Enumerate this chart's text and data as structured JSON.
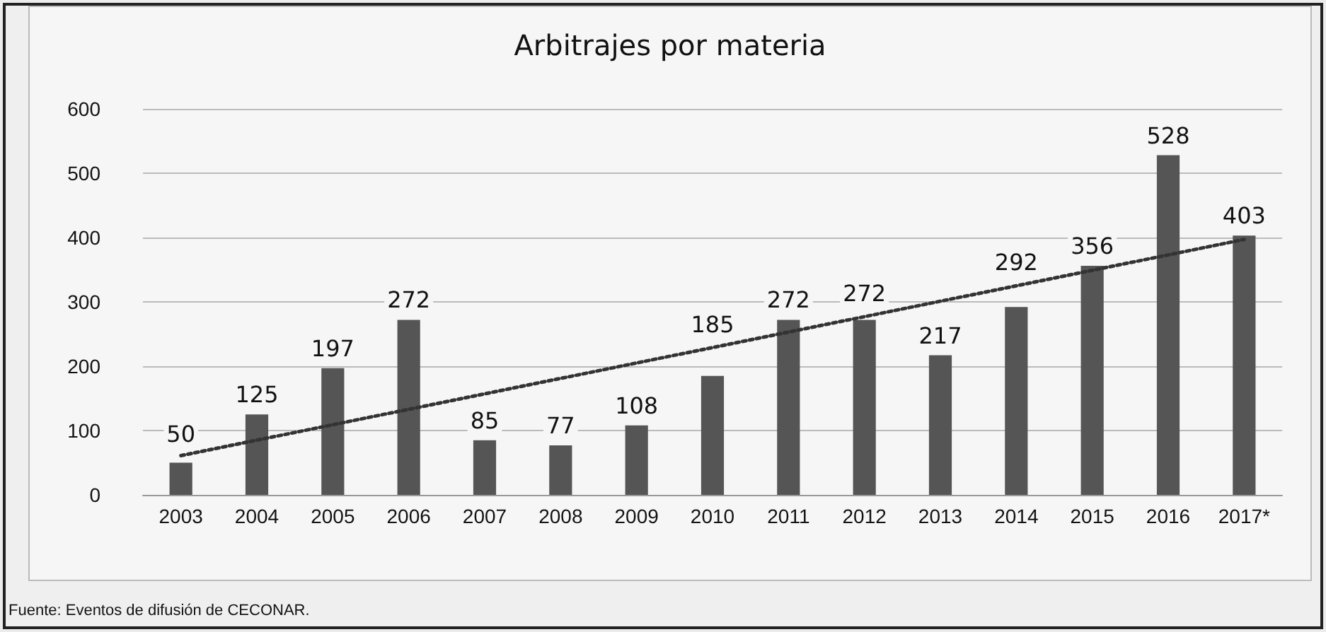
{
  "chart_data": {
    "type": "bar",
    "title": "Arbitrajes por materia",
    "categories": [
      "2003",
      "2004",
      "2005",
      "2006",
      "2007",
      "2008",
      "2009",
      "2010",
      "2011",
      "2012",
      "2013",
      "2014",
      "2015",
      "2016",
      "2017*"
    ],
    "series": [
      {
        "color": "#555555",
        "values": [
          50,
          125,
          197,
          272,
          85,
          77,
          108,
          185,
          272,
          272,
          217,
          292,
          356,
          528,
          403
        ],
        "value_labels": [
          "50",
          "125",
          "197",
          "272",
          "85",
          "77",
          "108",
          "185",
          "272",
          "272",
          "217",
          "292",
          "356",
          "528",
          "403"
        ]
      },
      {
        "type": "line",
        "color": "#333333",
        "values": [
          61,
          null,
          null,
          null,
          null,
          null,
          null,
          null,
          null,
          null,
          null,
          null,
          null,
          null,
          397
        ],
        "line_style": "dotted",
        "marker": "none"
      }
    ],
    "ylim": [
      0,
      600
    ],
    "yticks": [
      0,
      100,
      200,
      300,
      400,
      500,
      600
    ],
    "grid": "y",
    "annotations": [
      "Fuente: Eventos de difusión de CECONAR."
    ]
  }
}
